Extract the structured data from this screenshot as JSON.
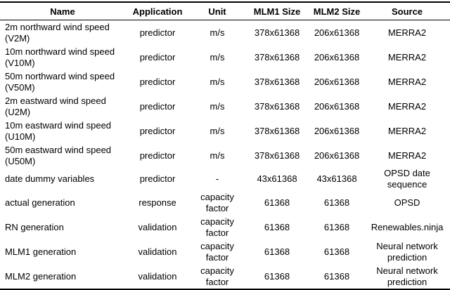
{
  "columns": [
    "Name",
    "Application",
    "Unit",
    "MLM1 Size",
    "MLM2 Size",
    "Source"
  ],
  "rows": [
    {
      "name": "2m northward wind speed (V2M)",
      "application": "predictor",
      "unit": "m/s",
      "mlm1": "378x61368",
      "mlm2": "206x61368",
      "source": "MERRA2"
    },
    {
      "name": "10m northward wind speed (V10M)",
      "application": "predictor",
      "unit": "m/s",
      "mlm1": "378x61368",
      "mlm2": "206x61368",
      "source": "MERRA2"
    },
    {
      "name": "50m northward wind speed (V50M)",
      "application": "predictor",
      "unit": "m/s",
      "mlm1": "378x61368",
      "mlm2": "206x61368",
      "source": "MERRA2"
    },
    {
      "name": "2m eastward wind speed (U2M)",
      "application": "predictor",
      "unit": "m/s",
      "mlm1": "378x61368",
      "mlm2": "206x61368",
      "source": "MERRA2"
    },
    {
      "name": "10m eastward wind speed (U10M)",
      "application": "predictor",
      "unit": "m/s",
      "mlm1": "378x61368",
      "mlm2": "206x61368",
      "source": "MERRA2"
    },
    {
      "name": "50m eastward wind speed (U50M)",
      "application": "predictor",
      "unit": "m/s",
      "mlm1": "378x61368",
      "mlm2": "206x61368",
      "source": "MERRA2"
    },
    {
      "name": "date dummy variables",
      "application": "predictor",
      "unit": "-",
      "mlm1": "43x61368",
      "mlm2": "43x61368",
      "source": "OPSD date sequence"
    },
    {
      "name": "actual generation",
      "application": "response",
      "unit": "capacity factor",
      "mlm1": "61368",
      "mlm2": "61368",
      "source": "OPSD"
    },
    {
      "name": "RN generation",
      "application": "validation",
      "unit": "capacity factor",
      "mlm1": "61368",
      "mlm2": "61368",
      "source": "Renewables.ninja"
    },
    {
      "name": "MLM1 generation",
      "application": "validation",
      "unit": "capacity factor",
      "mlm1": "61368",
      "mlm2": "61368",
      "source": "Neural network prediction"
    },
    {
      "name": "MLM2 generation",
      "application": "validation",
      "unit": "capacity factor",
      "mlm1": "61368",
      "mlm2": "61368",
      "source": "Neural network prediction"
    }
  ]
}
